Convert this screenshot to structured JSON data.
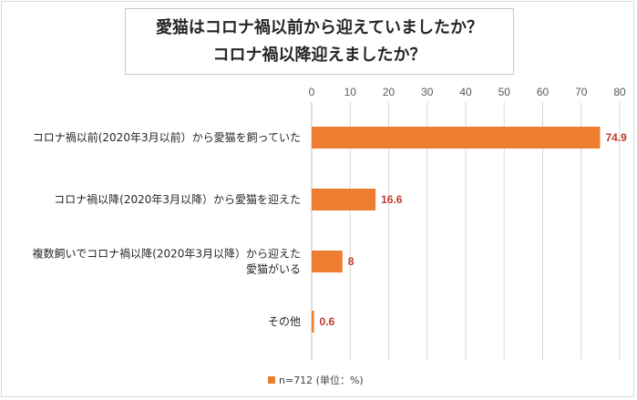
{
  "title_lines": [
    "愛猫はコロナ禍以前から迎えていましたか？",
    "コロナ禍以降迎えましたか？"
  ],
  "legend": {
    "label": "n=712 (単位：%)"
  },
  "colors": {
    "bar": "#ed7d31",
    "data_label": "#c0392b",
    "grid": "#d9d9d9"
  },
  "chart_data": {
    "type": "bar",
    "orientation": "horizontal",
    "title": "愛猫はコロナ禍以前から迎えていましたか？ コロナ禍以降迎えましたか？",
    "categories": [
      [
        "コロナ禍以前(2020年3月以前）から愛猫を飼っていた"
      ],
      [
        "コロナ禍以降(2020年3月以降）から愛猫を迎えた"
      ],
      [
        "複数飼いでコロナ禍以降(2020年3月以降）から迎えた",
        "愛猫がいる"
      ],
      [
        "その他"
      ]
    ],
    "values": [
      74.9,
      16.6,
      8,
      0.6
    ],
    "data_labels": [
      "74.9",
      "16.6",
      "8",
      "0.6"
    ],
    "xlim": [
      0,
      80
    ],
    "x_ticks": [
      0,
      10,
      20,
      30,
      40,
      50,
      60,
      70,
      80
    ],
    "x_axis_position": "top",
    "grid": true,
    "legend_position": "bottom"
  }
}
